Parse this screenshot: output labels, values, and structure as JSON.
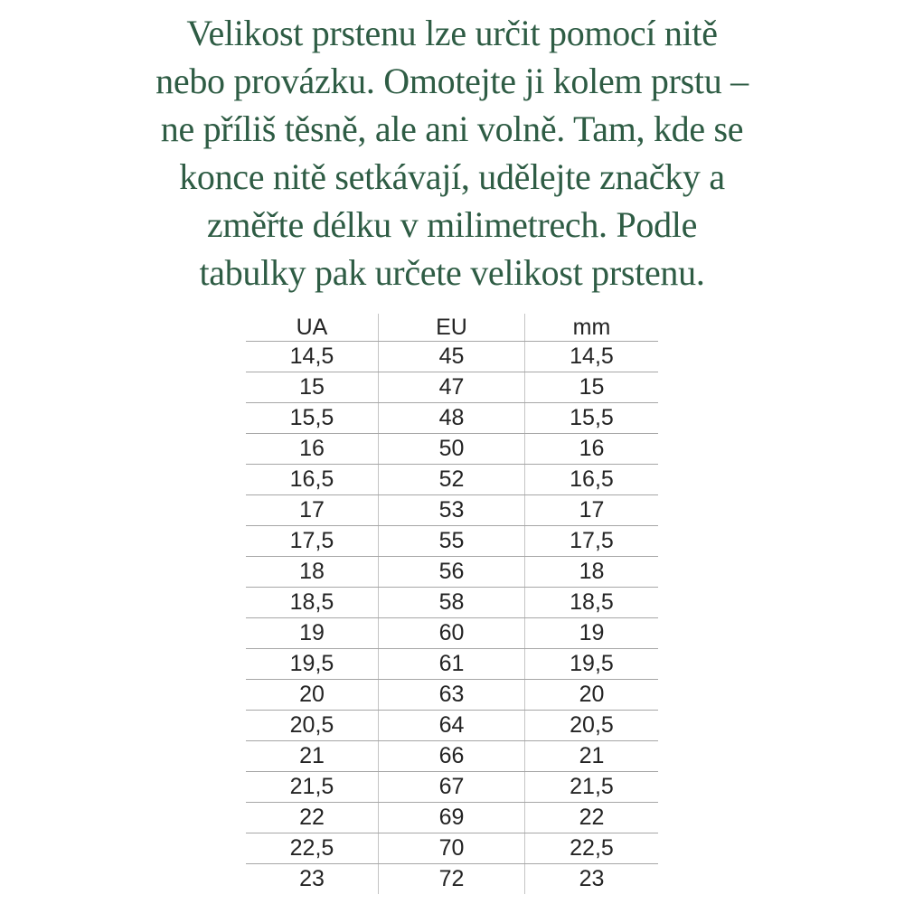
{
  "page": {
    "background_color": "#ffffff"
  },
  "intro": {
    "text": "Velikost prstenu lze určit pomocí nitě\nnebo provázku. Omotejte ji kolem prstu –\nne příliš těsně, ale ani volně. Tam, kde se\nkonce nitě setkávají, udělejte značky a\nzměřte délku v milimetrech. Podle\ntabulky pak určete velikost prstenu.",
    "color": "#2e5c44"
  },
  "table": {
    "headers": [
      "UA",
      "EU",
      "mm"
    ],
    "rows": [
      [
        "14,5",
        "45",
        "14,5"
      ],
      [
        "15",
        "47",
        "15"
      ],
      [
        "15,5",
        "48",
        "15,5"
      ],
      [
        "16",
        "50",
        "16"
      ],
      [
        "16,5",
        "52",
        "16,5"
      ],
      [
        "17",
        "53",
        "17"
      ],
      [
        "17,5",
        "55",
        "17,5"
      ],
      [
        "18",
        "56",
        "18"
      ],
      [
        "18,5",
        "58",
        "18,5"
      ],
      [
        "19",
        "60",
        "19"
      ],
      [
        "19,5",
        "61",
        "19,5"
      ],
      [
        "20",
        "63",
        "20"
      ],
      [
        "20,5",
        "64",
        "20,5"
      ],
      [
        "21",
        "66",
        "21"
      ],
      [
        "21,5",
        "67",
        "21,5"
      ],
      [
        "22",
        "69",
        "22"
      ],
      [
        "22,5",
        "70",
        "22,5"
      ],
      [
        "23",
        "72",
        "23"
      ]
    ],
    "text_color": "#242424",
    "horizontal_line_color": "#a6a6a6",
    "vertical_line_color": "#c4c4c4"
  }
}
